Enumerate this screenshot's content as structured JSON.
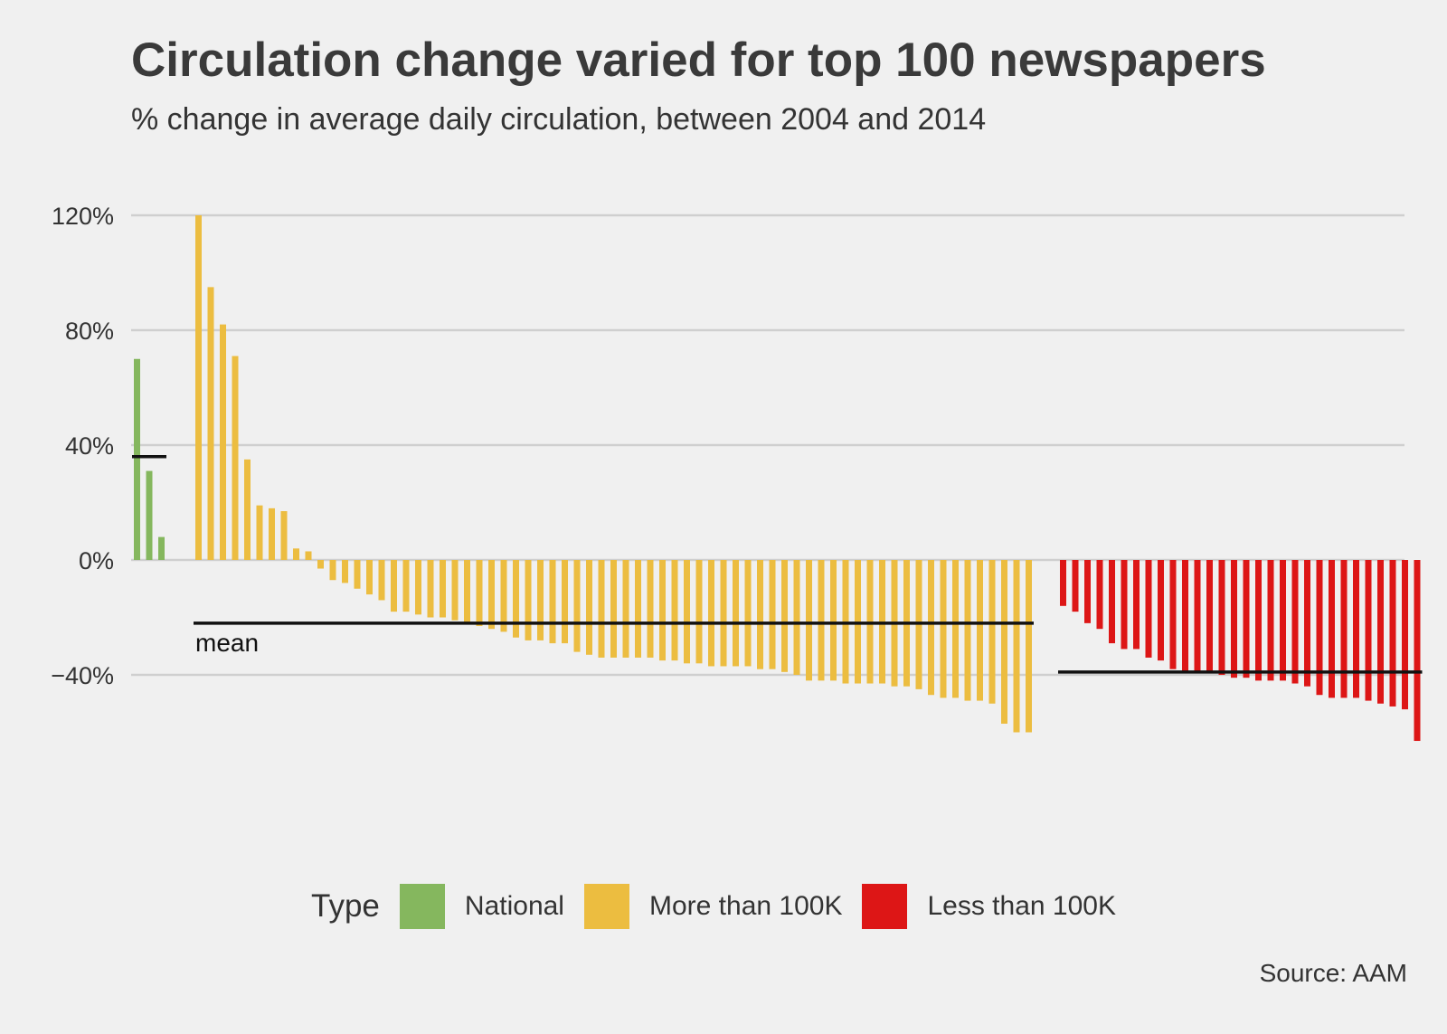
{
  "chart_data": {
    "type": "bar",
    "title": "Circulation change varied for top 100 newspapers",
    "subtitle": "% change in average daily circulation, between 2004 and 2014",
    "xlabel": "",
    "ylabel": "",
    "ylim": [
      -65,
      120
    ],
    "yticks": [
      120,
      80,
      40,
      0,
      -40
    ],
    "ytick_labels": [
      "120%",
      "80%",
      "40%",
      "0%",
      "−40%"
    ],
    "grid": true,
    "legend": {
      "title": "Type",
      "position": "bottom",
      "items": [
        {
          "label": "National",
          "color": "#85b75e"
        },
        {
          "label": "More than 100K",
          "color": "#ecbd40"
        },
        {
          "label": "Less than 100K",
          "color": "#dd1616"
        }
      ]
    },
    "series": [
      {
        "name": "National",
        "color": "#85b75e",
        "mean": 36,
        "values": [
          70,
          31,
          8
        ]
      },
      {
        "name": "More than 100K",
        "color": "#ecbd40",
        "mean": -22,
        "values": [
          120,
          95,
          82,
          71,
          35,
          19,
          18,
          17,
          4,
          3,
          -3,
          -7,
          -8,
          -10,
          -12,
          -14,
          -18,
          -18,
          -19,
          -20,
          -20,
          -21,
          -22,
          -23,
          -24,
          -25,
          -27,
          -28,
          -28,
          -29,
          -29,
          -32,
          -33,
          -34,
          -34,
          -34,
          -34,
          -34,
          -35,
          -35,
          -36,
          -36,
          -37,
          -37,
          -37,
          -37,
          -38,
          -38,
          -39,
          -40,
          -42,
          -42,
          -42,
          -43,
          -43,
          -43,
          -43,
          -44,
          -44,
          -45,
          -47,
          -48,
          -48,
          -49,
          -49,
          -50,
          -57,
          -60,
          -60
        ]
      },
      {
        "name": "Less than 100K",
        "color": "#dd1616",
        "mean": -39,
        "values": [
          -16,
          -18,
          -22,
          -24,
          -29,
          -31,
          -31,
          -34,
          -35,
          -38,
          -39,
          -39,
          -39,
          -40,
          -41,
          -41,
          -42,
          -42,
          -42,
          -43,
          -44,
          -47,
          -48,
          -48,
          -48,
          -49,
          -50,
          -51,
          -52,
          -63
        ]
      }
    ],
    "annotations": [
      {
        "text": "mean"
      }
    ],
    "source": "Source: AAM"
  }
}
